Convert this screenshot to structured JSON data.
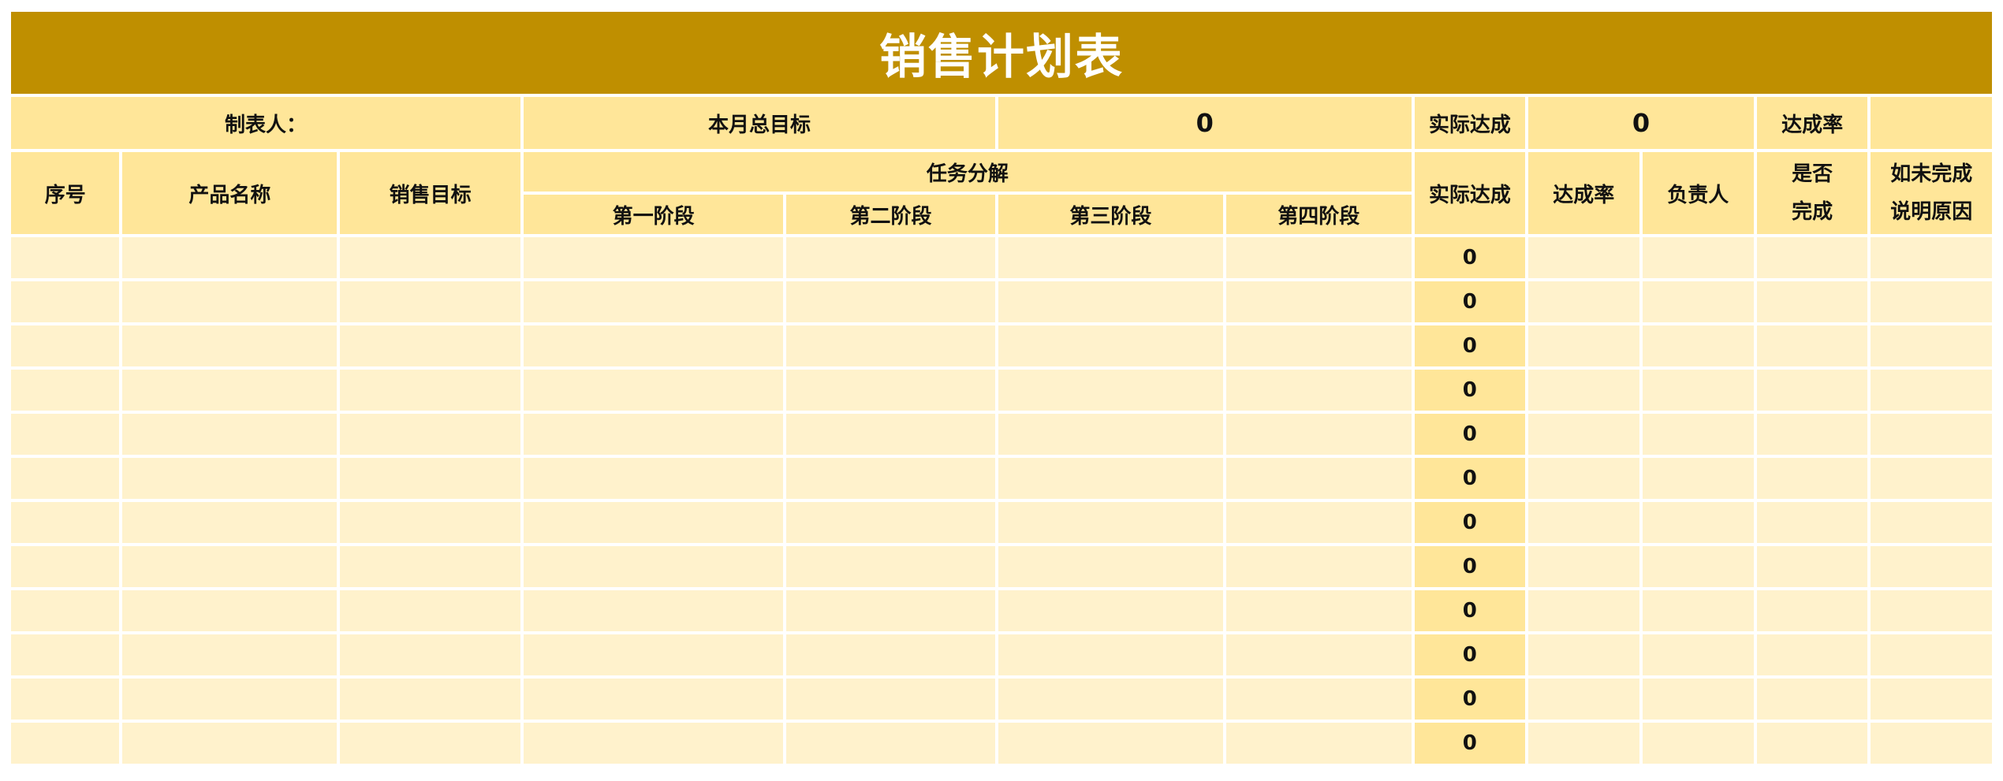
{
  "title": "销售计划表",
  "summary": {
    "maker_label": "制表人：",
    "monthly_target_label": "本月总目标",
    "monthly_target_value": "0",
    "actual_label": "实际达成",
    "actual_value": "0",
    "rate_label": "达成率",
    "rate_value": ""
  },
  "headers": {
    "index": "序号",
    "product": "产品名称",
    "target": "销售目标",
    "breakdown": "任务分解",
    "stages": [
      "第一阶段",
      "第二阶段",
      "第三阶段",
      "第四阶段"
    ],
    "actual": "实际达成",
    "rate": "达成率",
    "owner": "负责人",
    "done_1": "是否",
    "done_2": "完成",
    "reason_1": "如未完成",
    "reason_2": "说明原因"
  },
  "rows": [
    {
      "actual": "0"
    },
    {
      "actual": "0"
    },
    {
      "actual": "0"
    },
    {
      "actual": "0"
    },
    {
      "actual": "0"
    },
    {
      "actual": "0"
    },
    {
      "actual": "0"
    },
    {
      "actual": "0"
    },
    {
      "actual": "0"
    },
    {
      "actual": "0"
    },
    {
      "actual": "0"
    },
    {
      "actual": "0"
    }
  ],
  "colors": {
    "title_bg": "#BF8F00",
    "header_bg": "#FFE699",
    "cell_bg": "#FFF2CC"
  }
}
